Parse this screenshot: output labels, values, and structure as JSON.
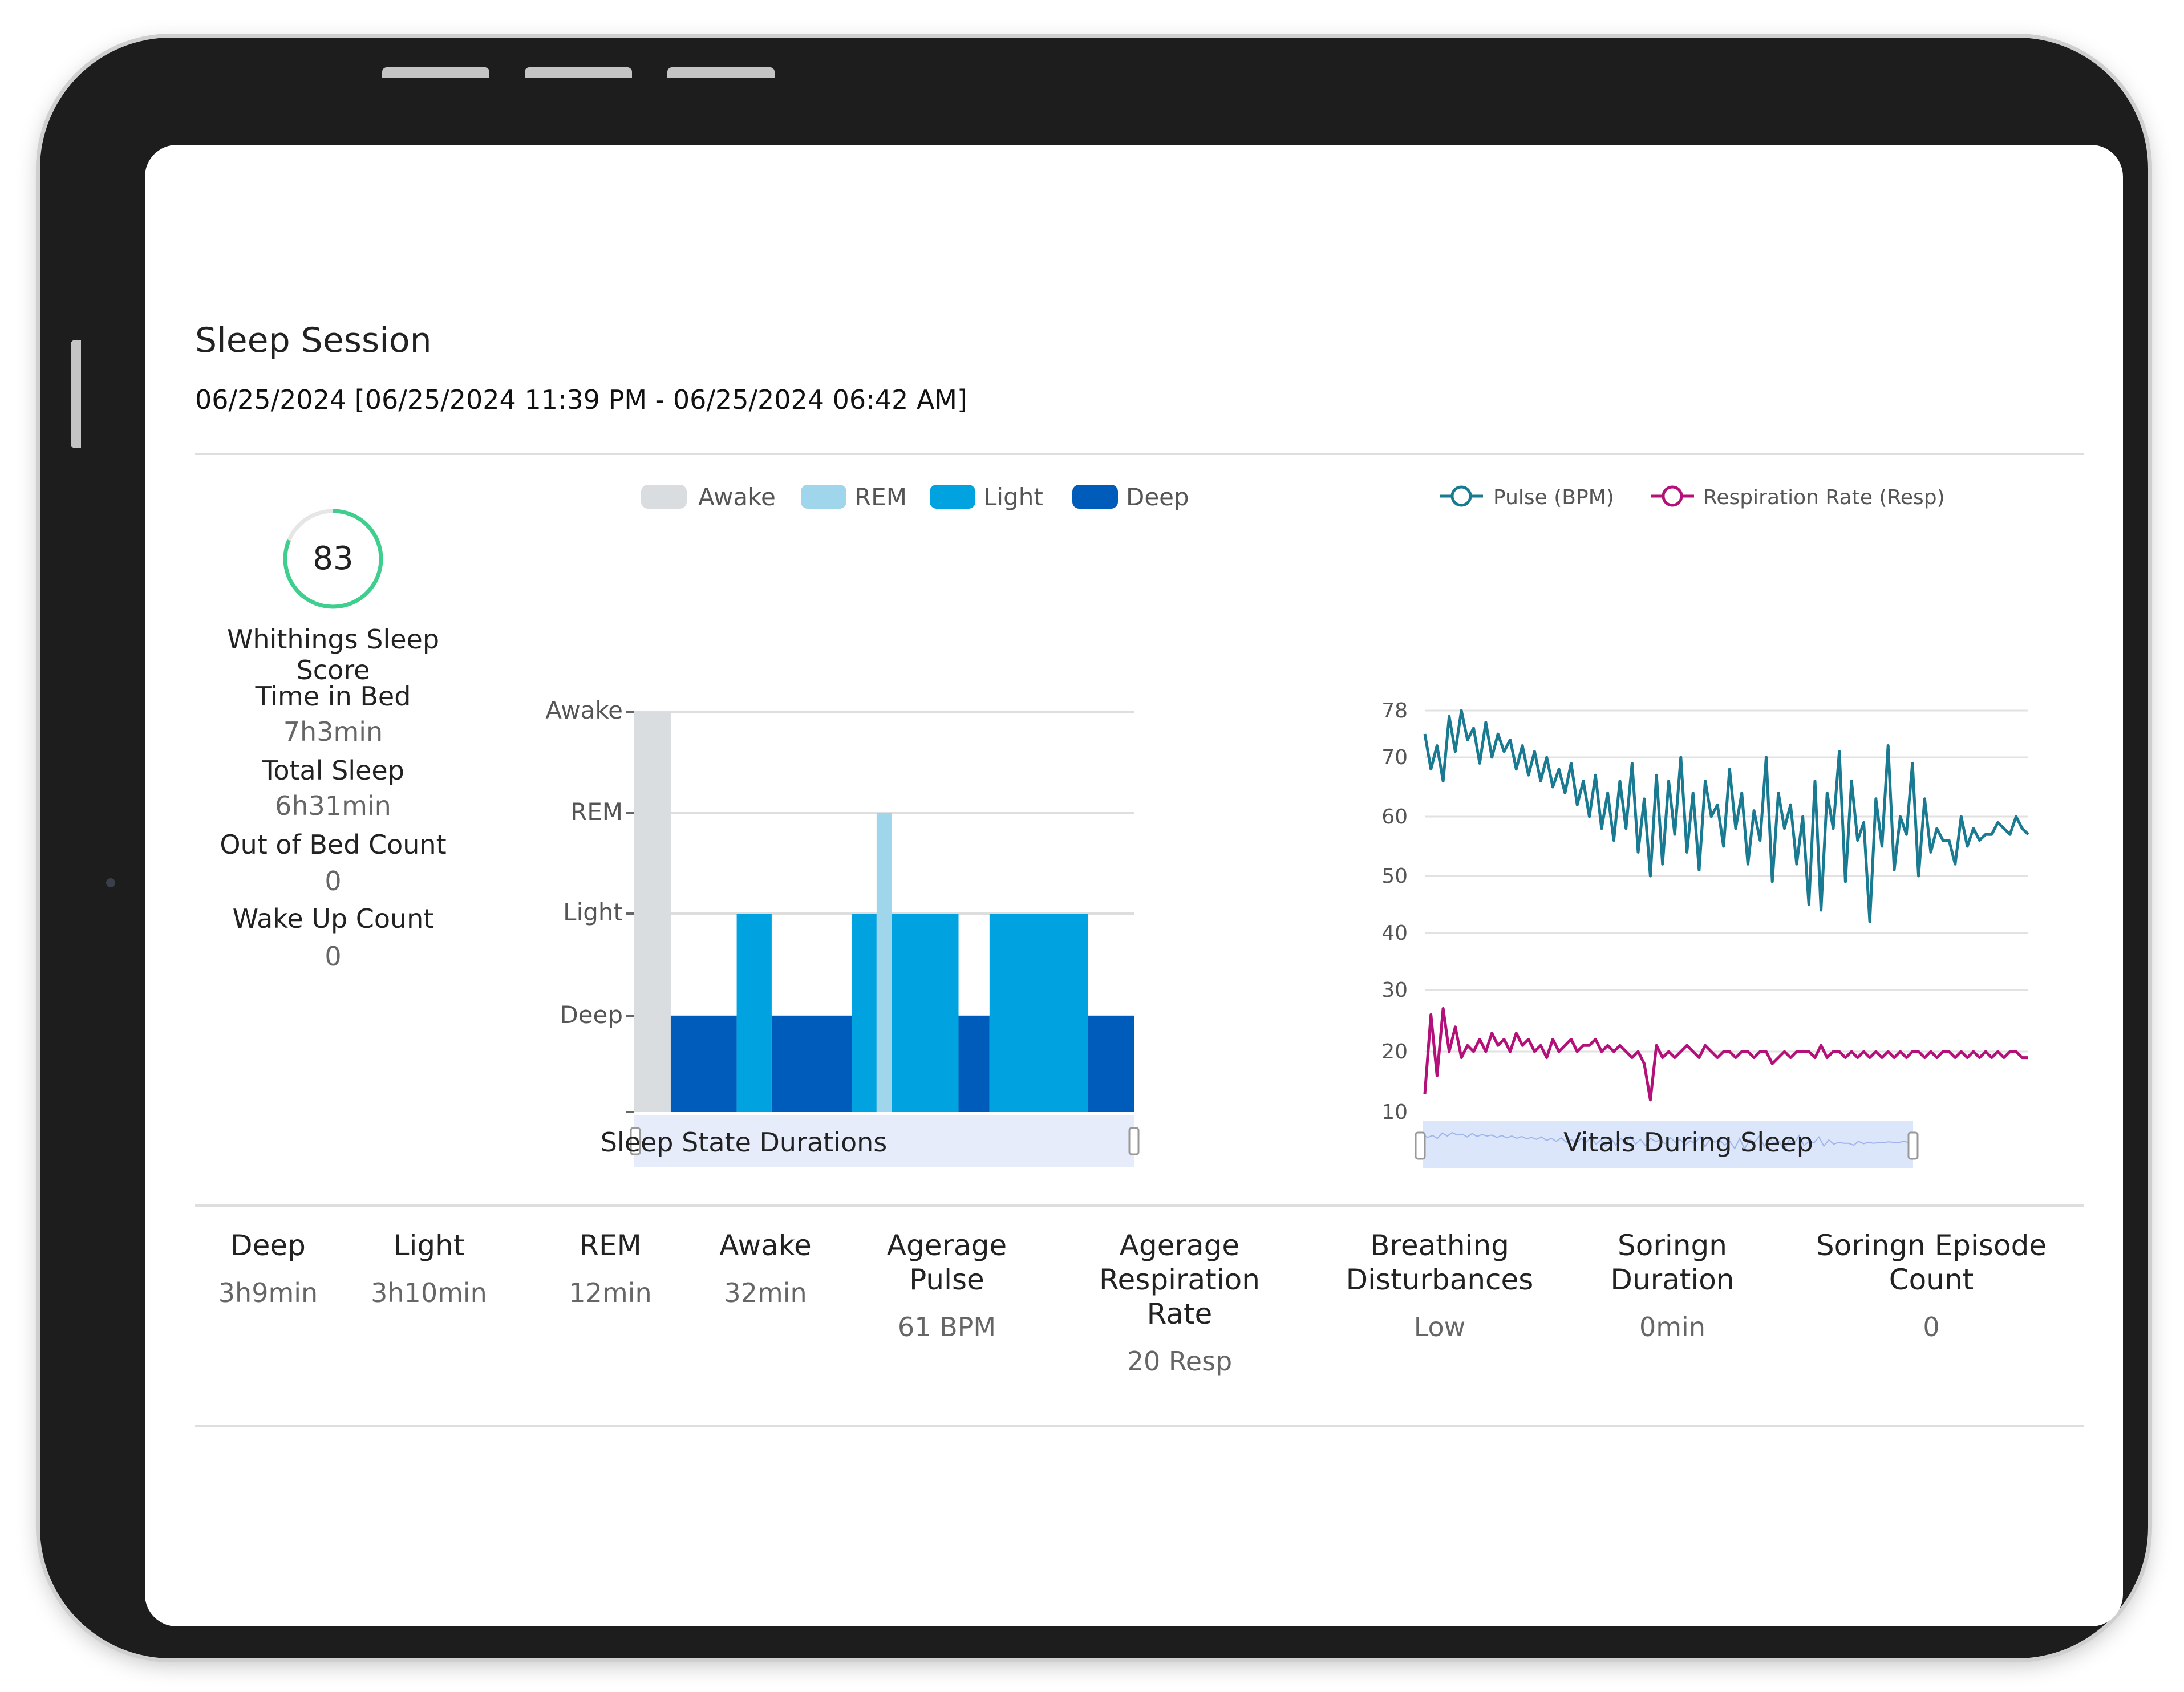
{
  "session": {
    "title": "Sleep Session",
    "date_range": "06/25/2024 [06/25/2024 11:39 PM - 06/25/2024 06:42 AM]"
  },
  "summary": {
    "score": {
      "value": "83",
      "label": "Whithings Sleep Score",
      "fraction": 0.83,
      "color": "#3ecf8e"
    },
    "items": [
      {
        "label": "Time in Bed",
        "value": "7h3min"
      },
      {
        "label": "Total Sleep",
        "value": "6h31min"
      },
      {
        "label": "Out of Bed Count",
        "value": "0"
      },
      {
        "label": "Wake Up Count",
        "value": "0"
      }
    ]
  },
  "sleep_chart": {
    "caption": "Sleep State Durations",
    "legend": [
      {
        "label": "Awake",
        "color": "#d9dde0"
      },
      {
        "label": "REM",
        "color": "#9fd6ec"
      },
      {
        "label": "Light",
        "color": "#00a2e0"
      },
      {
        "label": "Deep",
        "color": "#005cbb"
      }
    ]
  },
  "vitals_chart": {
    "caption": "Vitals During Sleep",
    "legend": [
      {
        "label": "Pulse (BPM)",
        "color": "#197a91"
      },
      {
        "label": "Respiration Rate (Resp)",
        "color": "#b3107a"
      }
    ]
  },
  "chart_data": [
    {
      "type": "bar",
      "title": "Sleep State Durations",
      "y_categories": [
        "Deep",
        "Light",
        "REM",
        "Awake"
      ],
      "segments": [
        {
          "state": "Awake",
          "start": 0,
          "end": 0.073
        },
        {
          "state": "Deep",
          "start": 0.073,
          "end": 0.205
        },
        {
          "state": "Light",
          "start": 0.205,
          "end": 0.275
        },
        {
          "state": "Deep",
          "start": 0.275,
          "end": 0.435
        },
        {
          "state": "Light",
          "start": 0.435,
          "end": 0.485
        },
        {
          "state": "REM",
          "start": 0.485,
          "end": 0.515
        },
        {
          "state": "Light",
          "start": 0.515,
          "end": 0.649
        },
        {
          "state": "Deep",
          "start": 0.649,
          "end": 0.711
        },
        {
          "state": "Light",
          "start": 0.711,
          "end": 0.908
        },
        {
          "state": "Deep",
          "start": 0.908,
          "end": 1.0
        }
      ],
      "slider": true
    },
    {
      "type": "line",
      "title": "Vitals During Sleep",
      "y_ticks": [
        10,
        20,
        30,
        40,
        50,
        60,
        70,
        78
      ],
      "ylim": [
        10,
        78
      ],
      "grid": true,
      "series": [
        {
          "name": "Pulse (BPM)",
          "color": "#197a91",
          "values": [
            74,
            68,
            72,
            66,
            77,
            71,
            78,
            73,
            75,
            69,
            76,
            70,
            74,
            71,
            73,
            68,
            72,
            67,
            71,
            66,
            70,
            65,
            68,
            64,
            69,
            62,
            66,
            60,
            67,
            58,
            64,
            56,
            66,
            58,
            69,
            54,
            63,
            50,
            67,
            52,
            66,
            57,
            70,
            54,
            64,
            51,
            66,
            60,
            62,
            55,
            68,
            58,
            64,
            52,
            61,
            56,
            70,
            49,
            64,
            58,
            62,
            52,
            60,
            45,
            66,
            44,
            64,
            58,
            71,
            49,
            66,
            56,
            59,
            42,
            63,
            55,
            72,
            51,
            60,
            57,
            69,
            50,
            63,
            54,
            58,
            56,
            56,
            52,
            60,
            55,
            58,
            56,
            57,
            57,
            59,
            58,
            57,
            60,
            58,
            57
          ]
        },
        {
          "name": "Respiration Rate (Resp)",
          "color": "#b3107a",
          "values": [
            13,
            26,
            16,
            27,
            20,
            24,
            19,
            21,
            20,
            22,
            20,
            23,
            21,
            22,
            20,
            23,
            21,
            22,
            20,
            21,
            19,
            22,
            20,
            21,
            22,
            20,
            21,
            21,
            22,
            20,
            21,
            20,
            21,
            20,
            19,
            20,
            18,
            12,
            21,
            19,
            20,
            19,
            20,
            21,
            20,
            19,
            21,
            20,
            19,
            20,
            20,
            19,
            20,
            20,
            19,
            20,
            20,
            18,
            19,
            20,
            19,
            20,
            20,
            20,
            19,
            21,
            19,
            20,
            20,
            19,
            20,
            19,
            20,
            19,
            20,
            19,
            20,
            19,
            20,
            19,
            20,
            20,
            19,
            20,
            19,
            20,
            20,
            19,
            20,
            19,
            20,
            19,
            20,
            19,
            20,
            19,
            20,
            20,
            19,
            19
          ]
        }
      ],
      "slider": true
    }
  ],
  "stats": [
    {
      "label": "Deep",
      "value": "3h9min"
    },
    {
      "label": "Light",
      "value": "3h10min"
    },
    {
      "label": "REM",
      "value": "12min"
    },
    {
      "label": "Awake",
      "value": "32min"
    },
    {
      "label": "Agerage Pulse",
      "value": "61 BPM"
    },
    {
      "label": "Agerage Respiration Rate",
      "value": "20 Resp"
    },
    {
      "label": "Breathing Disturbances",
      "value": "Low"
    },
    {
      "label": "Soringn Duration",
      "value": "0min"
    },
    {
      "label": "Soringn Episode Count",
      "value": "0"
    }
  ]
}
